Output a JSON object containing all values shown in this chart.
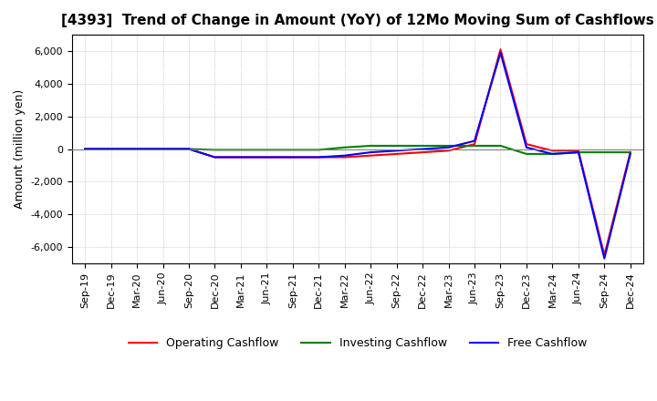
{
  "title": "[4393]  Trend of Change in Amount (YoY) of 12Mo Moving Sum of Cashflows",
  "ylabel": "Amount (million yen)",
  "ylim": [
    -7000,
    7000
  ],
  "yticks": [
    -6000,
    -4000,
    -2000,
    0,
    2000,
    4000,
    6000
  ],
  "x_labels": [
    "Sep-19",
    "Dec-19",
    "Mar-20",
    "Jun-20",
    "Sep-20",
    "Dec-20",
    "Mar-21",
    "Jun-21",
    "Sep-21",
    "Dec-21",
    "Mar-22",
    "Jun-22",
    "Sep-22",
    "Dec-22",
    "Mar-23",
    "Jun-23",
    "Sep-23",
    "Dec-23",
    "Mar-24",
    "Jun-24",
    "Sep-24",
    "Dec-24"
  ],
  "operating_cashflow": [
    0,
    0,
    0,
    0,
    0,
    -500,
    -500,
    -500,
    -500,
    -500,
    -500,
    -400,
    -300,
    -200,
    -100,
    300,
    6100,
    300,
    -100,
    -100,
    -6500,
    -200
  ],
  "investing_cashflow": [
    0,
    0,
    0,
    0,
    0,
    -50,
    -50,
    -50,
    -50,
    -50,
    100,
    200,
    200,
    200,
    200,
    200,
    200,
    -300,
    -300,
    -200,
    -200,
    -200
  ],
  "free_cashflow": [
    0,
    0,
    0,
    0,
    0,
    -500,
    -500,
    -500,
    -500,
    -500,
    -400,
    -200,
    -100,
    0,
    100,
    500,
    5900,
    100,
    -300,
    -200,
    -6700,
    -300
  ],
  "operating_color": "#ff0000",
  "investing_color": "#008000",
  "free_color": "#0000ff",
  "background_color": "#ffffff",
  "grid_color": "#aaaaaa",
  "title_fontsize": 11,
  "label_fontsize": 9,
  "tick_fontsize": 8
}
